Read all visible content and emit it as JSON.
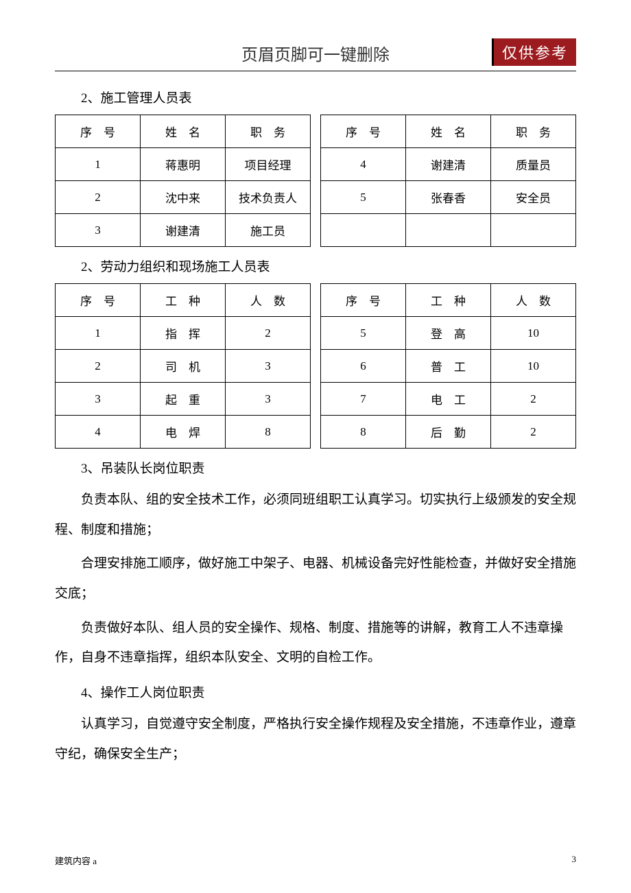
{
  "header": {
    "title": "页眉页脚可一键删除",
    "stamp": "仅供参考"
  },
  "sections": {
    "s1_title": "2、施工管理人员表",
    "s2_title": "2、劳动力组织和现场施工人员表",
    "s3_title": "3、吊装队长岗位职责",
    "s4_title": "4、操作工人岗位职责"
  },
  "table1": {
    "headers": {
      "seq": "序　号",
      "name": "姓　名",
      "role": "职　务"
    },
    "left": [
      {
        "seq": "1",
        "name": "蒋惠明",
        "role": "项目经理"
      },
      {
        "seq": "2",
        "name": "沈中来",
        "role": "技术负责人"
      },
      {
        "seq": "3",
        "name": "谢建清",
        "role": "施工员"
      }
    ],
    "right": [
      {
        "seq": "4",
        "name": "谢建清",
        "role": "质量员"
      },
      {
        "seq": "5",
        "name": "张春香",
        "role": "安全员"
      },
      {
        "seq": "",
        "name": "",
        "role": ""
      }
    ]
  },
  "table2": {
    "headers": {
      "seq": "序　号",
      "type": "工　种",
      "count": "人　数"
    },
    "left": [
      {
        "seq": "1",
        "type": "指　挥",
        "count": "2"
      },
      {
        "seq": "2",
        "type": "司　机",
        "count": "3"
      },
      {
        "seq": "3",
        "type": "起　重",
        "count": "3"
      },
      {
        "seq": "4",
        "type": "电　焊",
        "count": "8"
      }
    ],
    "right": [
      {
        "seq": "5",
        "type": "登　高",
        "count": "10"
      },
      {
        "seq": "6",
        "type": "普　工",
        "count": "10"
      },
      {
        "seq": "7",
        "type": "电　工",
        "count": "2"
      },
      {
        "seq": "8",
        "type": "后　勤",
        "count": "2"
      }
    ]
  },
  "paragraphs": {
    "p1": "负责本队、组的安全技术工作，必须同班组职工认真学习。切实执行上级颁发的安全规程、制度和措施；",
    "p2": "合理安排施工顺序，做好施工中架子、电器、机械设备完好性能检查，并做好安全措施交底；",
    "p3": "负责做好本队、组人员的安全操作、规格、制度、措施等的讲解，教育工人不违章操作，自身不违章指挥，组织本队安全、文明的自检工作。",
    "p4": "认真学习，自觉遵守安全制度，严格执行安全操作规程及安全措施，不违章作业，遵章守纪，确保安全生产；"
  },
  "footer": {
    "left": "建筑内容 a",
    "page": "3"
  },
  "colors": {
    "stamp_bg": "#9c1b1f",
    "stamp_fg": "#ffffff",
    "text": "#000000",
    "bg": "#ffffff"
  }
}
